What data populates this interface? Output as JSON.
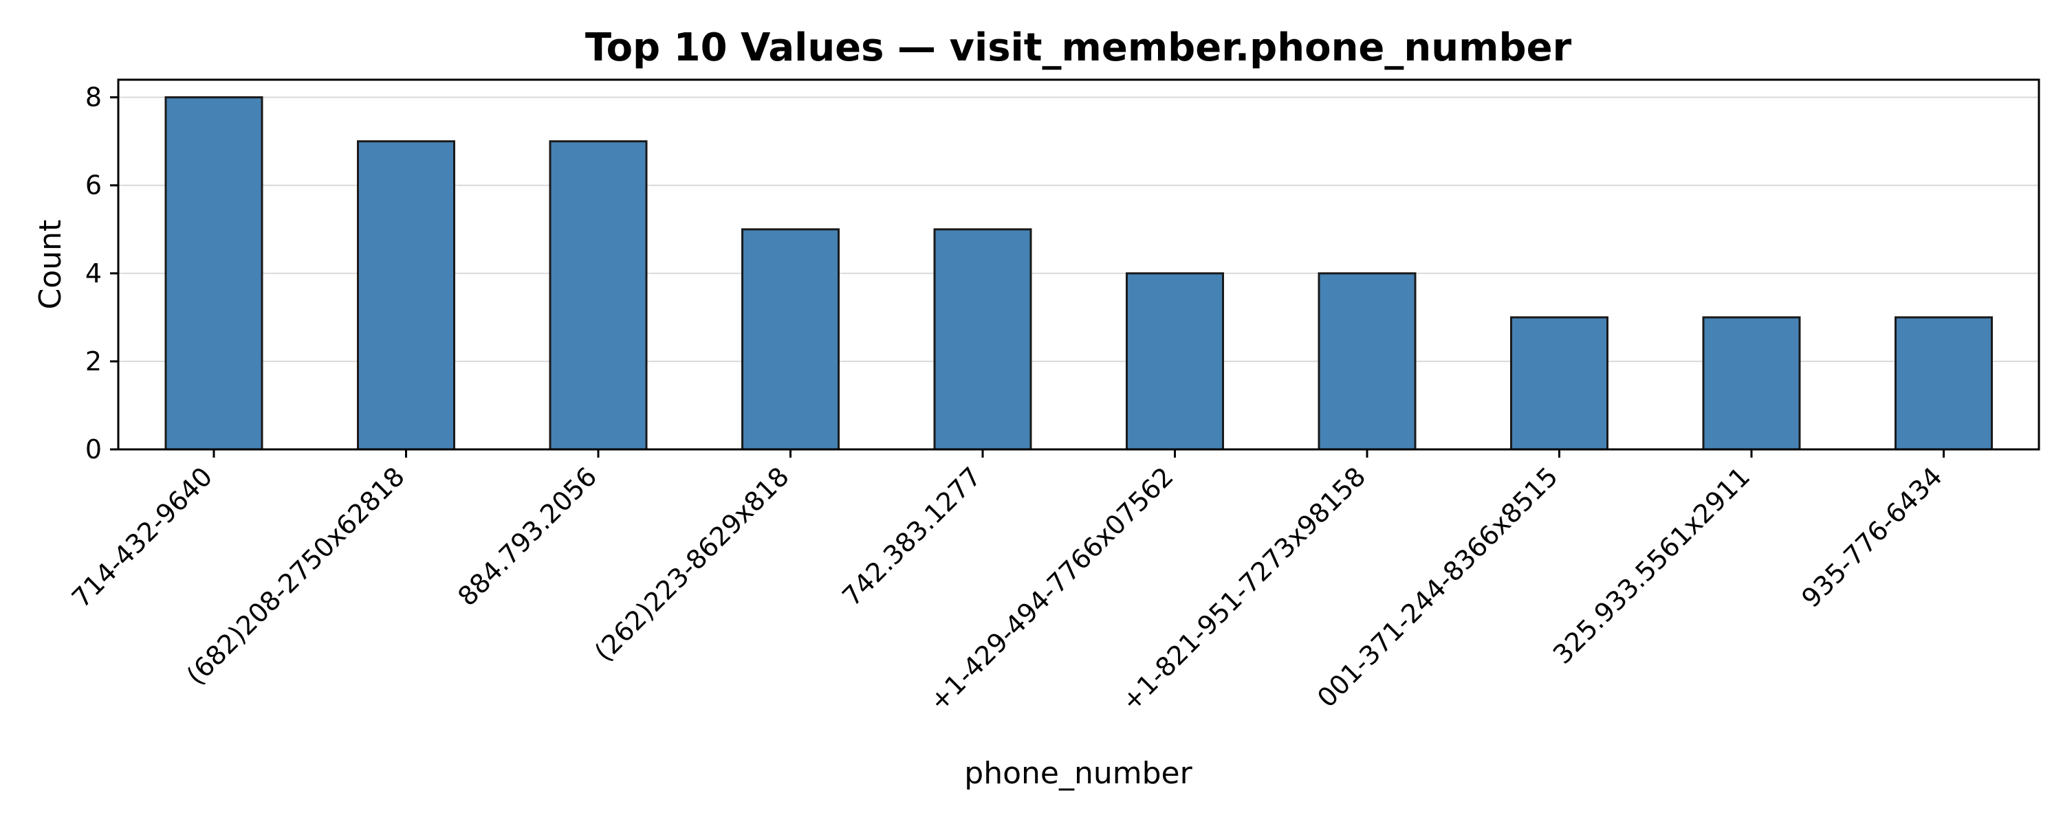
{
  "chart_data": {
    "type": "bar",
    "title": "Top 10 Values — visit_member.phone_number",
    "xlabel": "phone_number",
    "ylabel": "Count",
    "categories": [
      "714-432-9640",
      "(682)208-2750x62818",
      "884.793.2056",
      "(262)223-8629x818",
      "742.383.1277",
      "+1-429-494-7766x07562",
      "+1-821-951-7273x98158",
      "001-371-244-8366x8515",
      "325.933.5561x2911",
      "935-776-6434"
    ],
    "values": [
      8,
      7,
      7,
      5,
      5,
      4,
      4,
      3,
      3,
      3
    ],
    "ylim": [
      0,
      8.4
    ],
    "yticks": [
      0,
      2,
      4,
      6,
      8
    ],
    "grid": "y",
    "legend": "none",
    "bar_color": "#4682b4",
    "edge_color": "#1a1a1a"
  }
}
